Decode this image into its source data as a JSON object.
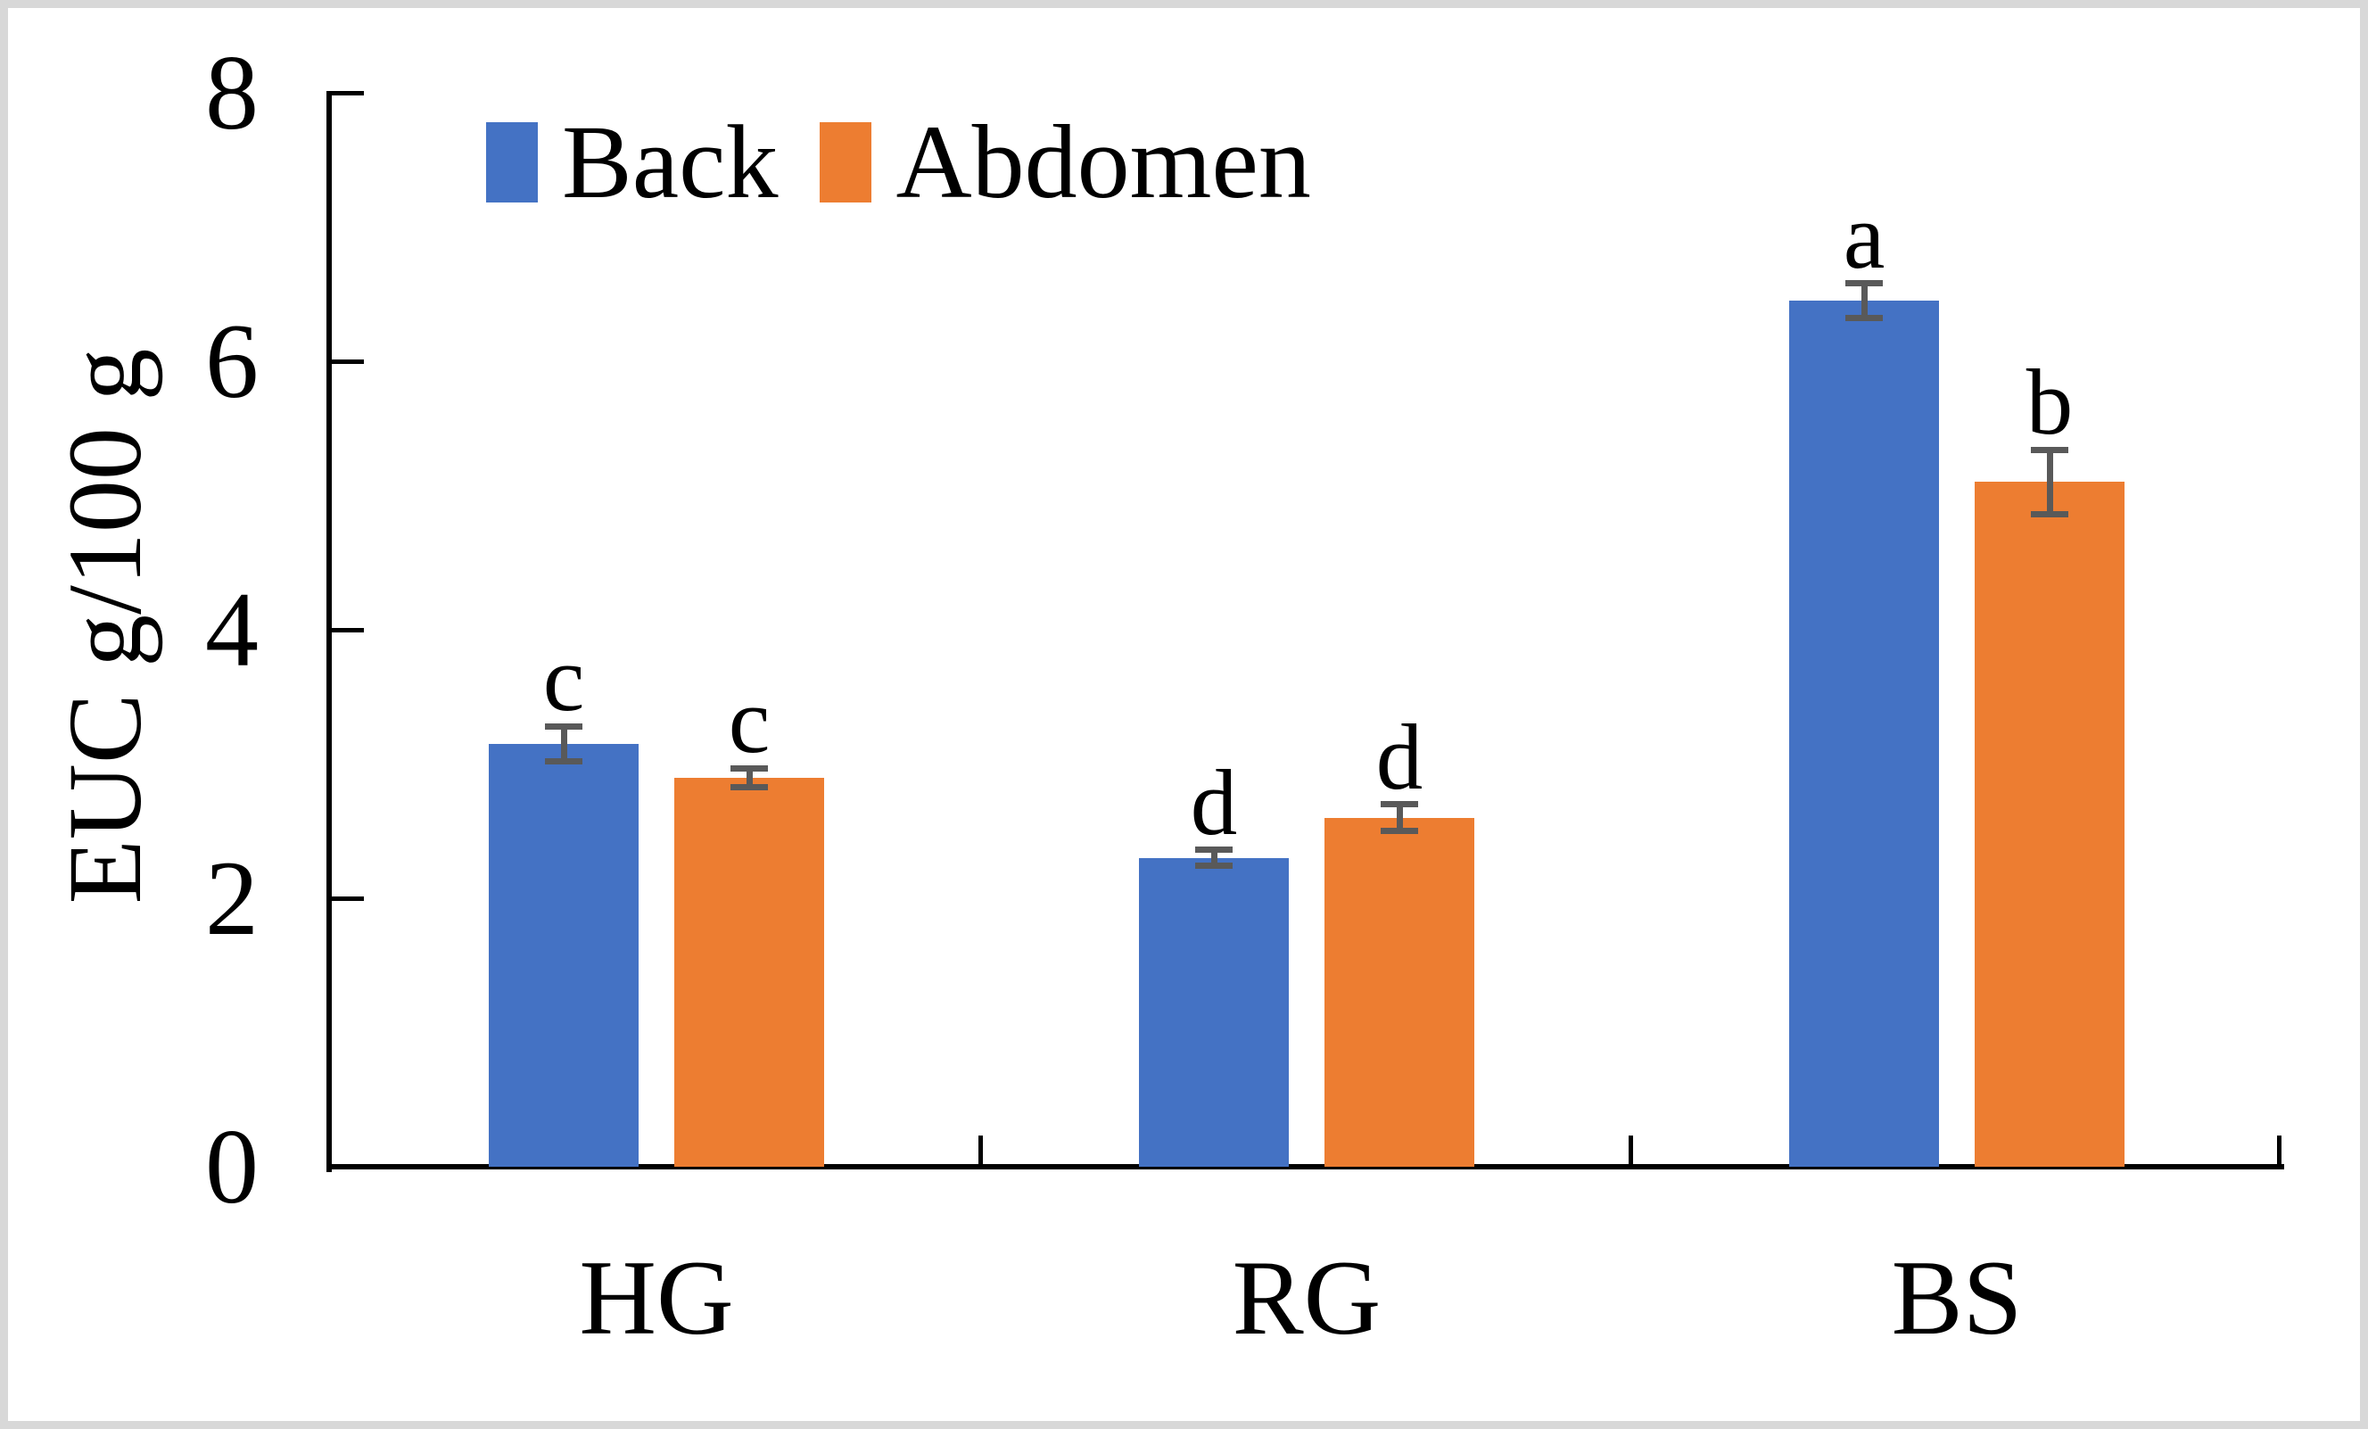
{
  "figure": {
    "background_color": "#ffffff",
    "frame_color": "#d8d8d8"
  },
  "chart_data": {
    "type": "bar",
    "title": "",
    "xlabel": "",
    "ylabel": "EUC g/100 g",
    "categories": [
      "HG",
      "RG",
      "BS"
    ],
    "series": [
      {
        "name": "Back",
        "color": "#4472C4",
        "values": [
          3.15,
          2.3,
          6.45
        ],
        "errors": [
          0.13,
          0.06,
          0.13
        ],
        "sig_letters": [
          "c",
          "d",
          "a"
        ]
      },
      {
        "name": "Abdomen",
        "color": "#ED7D31",
        "values": [
          2.9,
          2.6,
          5.1
        ],
        "errors": [
          0.07,
          0.1,
          0.24
        ],
        "sig_letters": [
          "c",
          "d",
          "b"
        ]
      }
    ],
    "ylim": [
      0,
      8
    ],
    "yticks": [
      0,
      2,
      4,
      6,
      8
    ],
    "grid": false,
    "legend_position": "top-center",
    "error_bar_color": "#595959",
    "axis_color": "#000000",
    "text_color": "#000000"
  }
}
